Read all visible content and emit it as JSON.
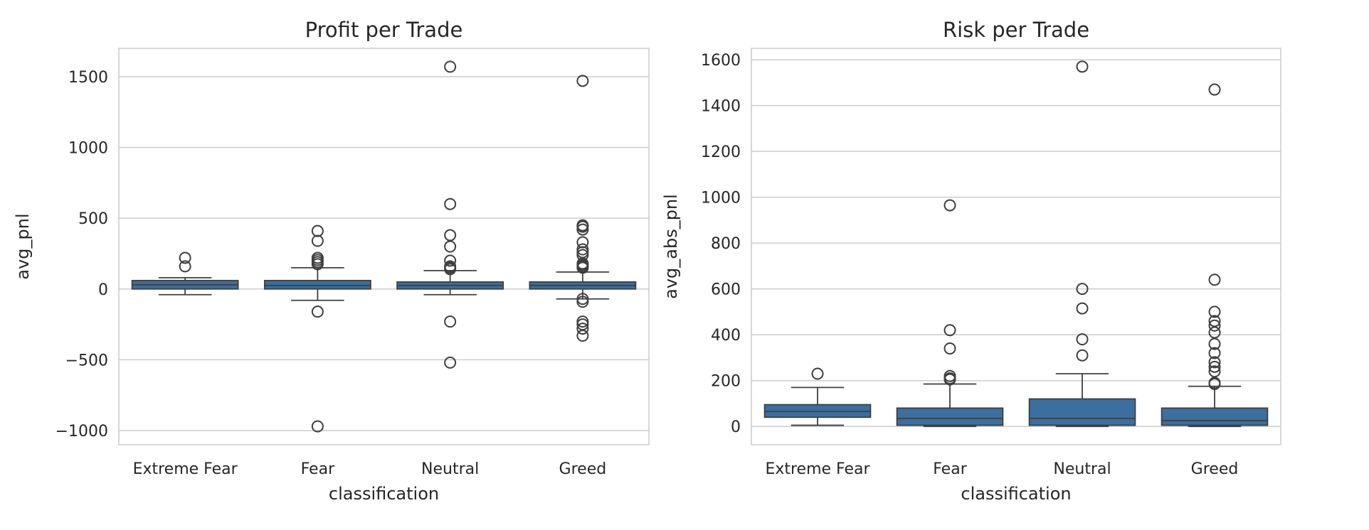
{
  "chart_data": [
    {
      "type": "box",
      "title": "Profit per Trade",
      "xlabel": "classification",
      "ylabel": "avg_pnl",
      "ylim": [
        -1100,
        1700
      ],
      "yticks": [
        -1000,
        -500,
        0,
        500,
        1000,
        1500
      ],
      "ytick_labels": [
        "−1000",
        "−500",
        "0",
        "500",
        "1000",
        "1500"
      ],
      "grid": true,
      "box_color": "#3a6f9f",
      "categories": [
        "Extreme Fear",
        "Fear",
        "Neutral",
        "Greed"
      ],
      "boxes": [
        {
          "category": "Extreme Fear",
          "whisker_low": -40,
          "q1": 0,
          "median": 30,
          "q3": 60,
          "whisker_high": 80,
          "fliers": [
            220,
            160
          ]
        },
        {
          "category": "Fear",
          "whisker_low": -80,
          "q1": 0,
          "median": 25,
          "q3": 60,
          "whisker_high": 150,
          "fliers": [
            410,
            340,
            220,
            205,
            190,
            175,
            -160,
            -970
          ]
        },
        {
          "category": "Neutral",
          "whisker_low": -40,
          "q1": 0,
          "median": 25,
          "q3": 50,
          "whisker_high": 130,
          "fliers": [
            1570,
            600,
            380,
            300,
            200,
            160,
            150,
            140,
            -230,
            -520
          ]
        },
        {
          "category": "Greed",
          "whisker_low": -70,
          "q1": 0,
          "median": 25,
          "q3": 50,
          "whisker_high": 120,
          "fliers": [
            1470,
            450,
            440,
            420,
            330,
            280,
            260,
            240,
            180,
            170,
            160,
            150,
            -70,
            -90,
            -230,
            -250,
            -280,
            -330
          ]
        }
      ]
    },
    {
      "type": "box",
      "title": "Risk per Trade",
      "xlabel": "classification",
      "ylabel": "avg_abs_pnl",
      "ylim": [
        -80,
        1650
      ],
      "yticks": [
        0,
        200,
        400,
        600,
        800,
        1000,
        1200,
        1400,
        1600
      ],
      "ytick_labels": [
        "0",
        "200",
        "400",
        "600",
        "800",
        "1000",
        "1200",
        "1400",
        "1600"
      ],
      "grid": true,
      "box_color": "#3a6f9f",
      "categories": [
        "Extreme Fear",
        "Fear",
        "Neutral",
        "Greed"
      ],
      "boxes": [
        {
          "category": "Extreme Fear",
          "whisker_low": 5,
          "q1": 40,
          "median": 65,
          "q3": 95,
          "whisker_high": 170,
          "fliers": [
            230
          ]
        },
        {
          "category": "Fear",
          "whisker_low": 0,
          "q1": 5,
          "median": 35,
          "q3": 80,
          "whisker_high": 185,
          "fliers": [
            965,
            420,
            340,
            220,
            210,
            205
          ]
        },
        {
          "category": "Neutral",
          "whisker_low": 0,
          "q1": 5,
          "median": 35,
          "q3": 120,
          "whisker_high": 230,
          "fliers": [
            1570,
            600,
            515,
            380,
            310
          ]
        },
        {
          "category": "Greed",
          "whisker_low": 0,
          "q1": 5,
          "median": 25,
          "q3": 80,
          "whisker_high": 175,
          "fliers": [
            1470,
            640,
            500,
            460,
            440,
            410,
            360,
            320,
            280,
            260,
            240,
            190,
            185
          ]
        }
      ]
    }
  ]
}
